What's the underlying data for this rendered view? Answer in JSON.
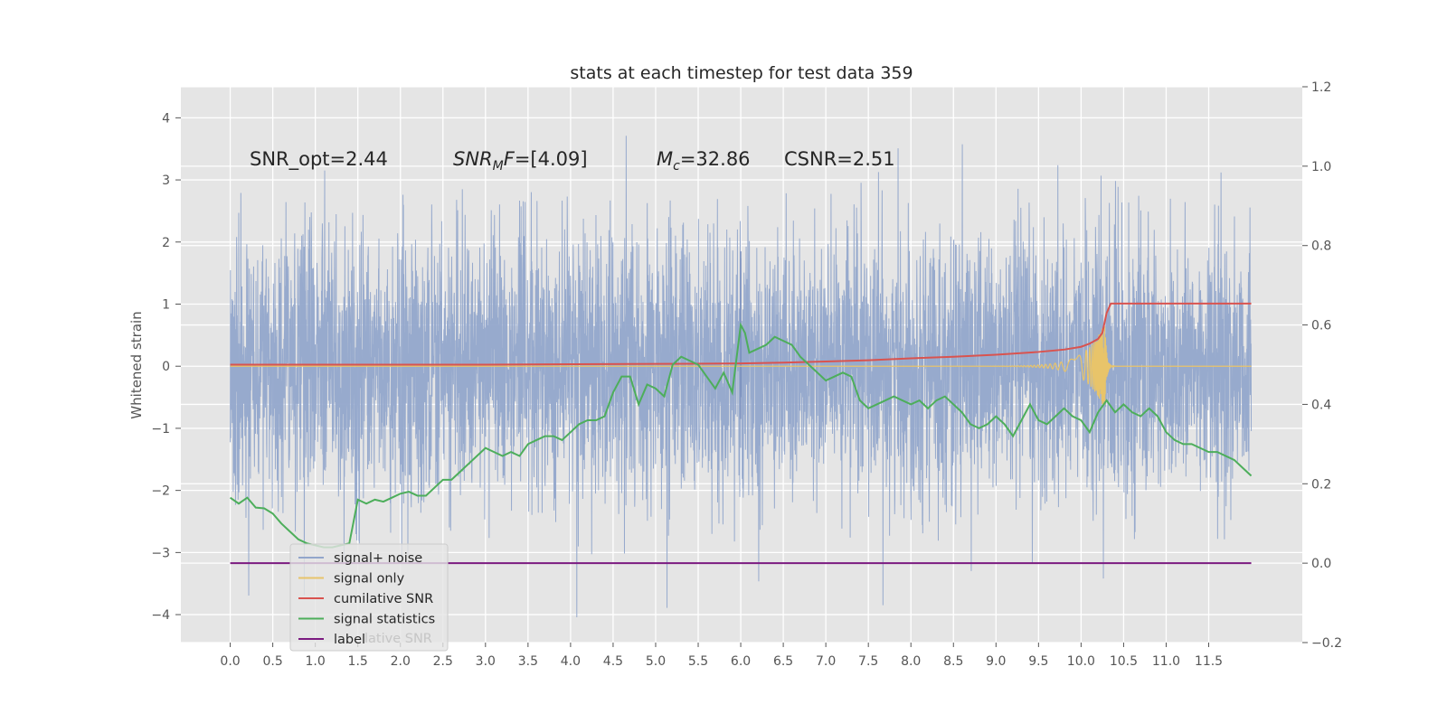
{
  "chart_data": {
    "type": "line",
    "title": "stats at each timestep for test data 359",
    "xlabel": "",
    "ylabel": "Whitened strain",
    "xlim": [
      -0.58,
      12.6
    ],
    "ylim": [
      -4.45,
      4.5
    ],
    "y2lim": [
      -0.2,
      1.2
    ],
    "x_ticks": [
      "0.0",
      "0.5",
      "1.0",
      "1.5",
      "2.0",
      "2.5",
      "3.0",
      "3.5",
      "4.0",
      "4.5",
      "5.0",
      "5.5",
      "6.0",
      "6.5",
      "7.0",
      "7.5",
      "8.0",
      "8.5",
      "9.0",
      "9.5",
      "10.0",
      "10.5",
      "11.0",
      "11.5"
    ],
    "y_ticks": [
      "−4",
      "−3",
      "−2",
      "−1",
      "0",
      "1",
      "2",
      "3",
      "4"
    ],
    "y2_ticks": [
      "−0.2",
      "0.0",
      "0.2",
      "0.4",
      "0.6",
      "0.8",
      "1.0",
      "1.2"
    ],
    "grid": true,
    "legend_placement": "lower-left",
    "annotations": {
      "snr_opt": "SNR_opt=2.44",
      "snr_mf_main": "SNR",
      "snr_mf_sub": "M",
      "snr_mf_tail": "F",
      "snr_mf_value": "=[4.09]",
      "mc_main": "M",
      "mc_sub": "c",
      "mc_value": "=32.86",
      "csnr": "CSNR=2.51"
    },
    "series": [
      {
        "name": "signal+ noise",
        "axis": "left",
        "color": "#92a6cb",
        "x_range": [
          0.0,
          12.0
        ],
        "amplitude_std": 1.0,
        "min": -4.1,
        "max": 4.1
      },
      {
        "name": "signal only",
        "axis": "left",
        "color": "#e8c46a",
        "x_range": [
          0.0,
          12.0
        ],
        "merger_time": 10.28,
        "peak_amplitude": 0.7
      },
      {
        "name": "cumilative SNR",
        "axis": "right",
        "color": "#d9534f",
        "x": [
          0.0,
          1.0,
          2.0,
          3.0,
          4.0,
          5.0,
          6.0,
          6.5,
          7.0,
          7.5,
          8.0,
          8.5,
          9.0,
          9.5,
          9.8,
          10.0,
          10.1,
          10.2,
          10.25,
          10.3,
          10.35,
          11.0,
          12.0
        ],
        "values": [
          0.5,
          0.5,
          0.5,
          0.5,
          0.501,
          0.502,
          0.503,
          0.505,
          0.508,
          0.511,
          0.516,
          0.52,
          0.525,
          0.532,
          0.538,
          0.545,
          0.553,
          0.565,
          0.58,
          0.63,
          0.654,
          0.654,
          0.654
        ]
      },
      {
        "name": "signal statistics",
        "axis": "right",
        "color": "#4dae5b",
        "x": [
          0.0,
          0.1,
          0.2,
          0.3,
          0.4,
          0.5,
          0.6,
          0.7,
          0.8,
          0.9,
          1.0,
          1.1,
          1.2,
          1.3,
          1.4,
          1.5,
          1.6,
          1.7,
          1.8,
          1.9,
          2.0,
          2.1,
          2.2,
          2.3,
          2.4,
          2.5,
          2.6,
          2.7,
          2.8,
          2.9,
          3.0,
          3.1,
          3.2,
          3.3,
          3.4,
          3.5,
          3.6,
          3.7,
          3.8,
          3.9,
          4.0,
          4.1,
          4.2,
          4.3,
          4.4,
          4.5,
          4.6,
          4.7,
          4.8,
          4.9,
          5.0,
          5.1,
          5.2,
          5.3,
          5.4,
          5.5,
          5.6,
          5.7,
          5.8,
          5.9,
          6.0,
          6.05,
          6.1,
          6.2,
          6.3,
          6.4,
          6.5,
          6.6,
          6.7,
          6.8,
          6.9,
          7.0,
          7.1,
          7.2,
          7.3,
          7.4,
          7.5,
          7.6,
          7.7,
          7.8,
          7.9,
          8.0,
          8.1,
          8.2,
          8.3,
          8.4,
          8.5,
          8.6,
          8.7,
          8.8,
          8.9,
          9.0,
          9.1,
          9.2,
          9.3,
          9.4,
          9.5,
          9.6,
          9.7,
          9.8,
          9.9,
          10.0,
          10.1,
          10.2,
          10.3,
          10.4,
          10.5,
          10.6,
          10.7,
          10.8,
          10.9,
          11.0,
          11.1,
          11.2,
          11.3,
          11.4,
          11.5,
          11.6,
          11.7,
          11.8,
          11.9,
          12.0
        ],
        "values": [
          0.165,
          0.15,
          0.165,
          0.14,
          0.138,
          0.125,
          0.1,
          0.08,
          0.06,
          0.05,
          0.045,
          0.04,
          0.04,
          0.045,
          0.05,
          0.16,
          0.15,
          0.16,
          0.155,
          0.165,
          0.175,
          0.18,
          0.17,
          0.17,
          0.19,
          0.21,
          0.21,
          0.23,
          0.25,
          0.27,
          0.29,
          0.28,
          0.27,
          0.28,
          0.27,
          0.3,
          0.31,
          0.32,
          0.32,
          0.31,
          0.33,
          0.35,
          0.36,
          0.36,
          0.37,
          0.43,
          0.47,
          0.47,
          0.4,
          0.45,
          0.44,
          0.42,
          0.5,
          0.52,
          0.51,
          0.5,
          0.47,
          0.44,
          0.48,
          0.43,
          0.6,
          0.58,
          0.53,
          0.54,
          0.55,
          0.57,
          0.56,
          0.55,
          0.52,
          0.5,
          0.48,
          0.46,
          0.47,
          0.48,
          0.47,
          0.41,
          0.39,
          0.4,
          0.41,
          0.42,
          0.41,
          0.4,
          0.41,
          0.39,
          0.41,
          0.42,
          0.4,
          0.38,
          0.35,
          0.34,
          0.35,
          0.37,
          0.35,
          0.32,
          0.36,
          0.4,
          0.36,
          0.35,
          0.37,
          0.39,
          0.37,
          0.36,
          0.33,
          0.38,
          0.41,
          0.38,
          0.4,
          0.38,
          0.37,
          0.39,
          0.37,
          0.33,
          0.31,
          0.3,
          0.3,
          0.29,
          0.28,
          0.28,
          0.27,
          0.26,
          0.24,
          0.22
        ]
      },
      {
        "name": "label",
        "axis": "right",
        "color": "#7b1a80",
        "x": [
          0.0,
          12.0
        ],
        "values": [
          0.0,
          0.0
        ]
      }
    ],
    "transient_spike": {
      "x": 6.0,
      "ymin": -0.85,
      "ymax": 1.85
    },
    "legend_hidden_text": "cumilative SNR",
    "legend_hidden_overlap": "lative SNR"
  }
}
